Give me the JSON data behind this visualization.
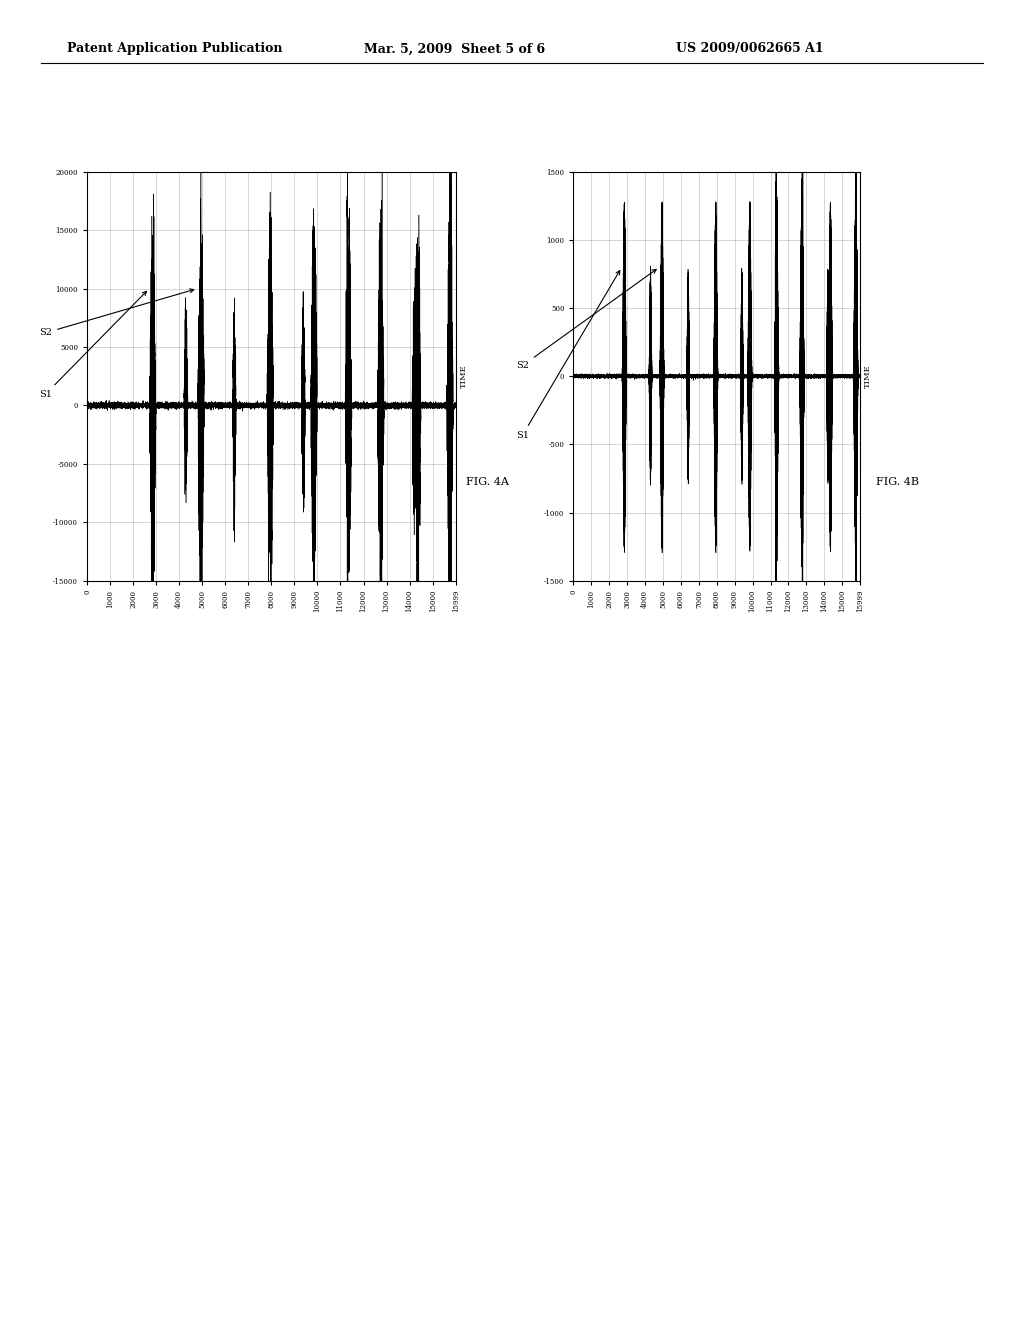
{
  "header_left": "Patent Application Publication",
  "header_mid": "Mar. 5, 2009  Sheet 5 of 6",
  "header_right": "US 2009/0062665 A1",
  "fig4a_label": "FIG. 4A",
  "fig4b_label": "FIG. 4B",
  "time_label": "TIME",
  "fig4a_ylim": [
    -15000,
    20000
  ],
  "fig4a_yticks": [
    20000,
    15000,
    10000,
    5000,
    0,
    -5000,
    -10000,
    -15000
  ],
  "fig4b_ylim": [
    -1500,
    1500
  ],
  "fig4b_yticks": [
    1500,
    1000,
    500,
    0,
    -500,
    -1000,
    -1500
  ],
  "xlim": [
    0,
    15999
  ],
  "xticks": [
    0,
    1000,
    2000,
    3000,
    4000,
    5000,
    6000,
    7000,
    8000,
    9000,
    10000,
    11000,
    12000,
    13000,
    14000,
    15000,
    15999
  ],
  "background_color": "#ffffff",
  "line_color": "#000000",
  "grid_color": "#888888"
}
